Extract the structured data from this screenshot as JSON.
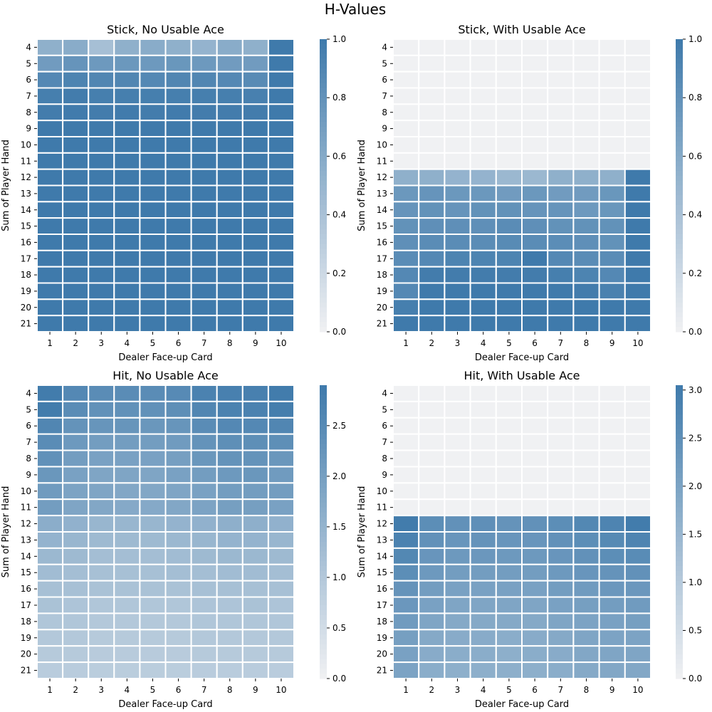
{
  "figure": {
    "title": "H-Values"
  },
  "colors": {
    "high": "#3f7aab",
    "low": "#f0f1f3",
    "grid": "#ffffff"
  },
  "chart_data": [
    {
      "type": "heatmap",
      "title": "Stick, No Usable Ace",
      "xlabel": "Dealer Face-up Card",
      "ylabel": "Sum of Player Hand",
      "x": [
        "1",
        "2",
        "3",
        "4",
        "5",
        "6",
        "7",
        "8",
        "9",
        "10"
      ],
      "y": [
        "4",
        "5",
        "6",
        "7",
        "8",
        "9",
        "10",
        "11",
        "12",
        "13",
        "14",
        "15",
        "16",
        "17",
        "18",
        "19",
        "20",
        "21"
      ],
      "vmin": 0,
      "vmax": 1.0,
      "colorbar_ticks": [
        "0.0",
        "0.2",
        "0.4",
        "0.6",
        "0.8",
        "1.0"
      ],
      "colorbar_tick_values": [
        0,
        0.2,
        0.4,
        0.6,
        0.8,
        1.0
      ],
      "values": [
        [
          0.55,
          0.58,
          0.42,
          0.55,
          0.58,
          0.55,
          0.52,
          0.58,
          0.55,
          1.0
        ],
        [
          0.72,
          0.78,
          0.74,
          0.75,
          0.74,
          0.76,
          0.74,
          0.72,
          0.72,
          1.0
        ],
        [
          0.88,
          0.92,
          0.9,
          0.9,
          0.88,
          0.9,
          0.9,
          0.88,
          0.86,
          1.0
        ],
        [
          0.96,
          0.98,
          0.96,
          0.96,
          0.96,
          0.96,
          0.96,
          0.96,
          0.95,
          1.0
        ],
        [
          0.98,
          0.99,
          0.98,
          0.99,
          0.98,
          0.99,
          0.98,
          0.98,
          0.98,
          1.0
        ],
        [
          1.0,
          1.0,
          1.0,
          1.0,
          1.0,
          1.0,
          1.0,
          1.0,
          1.0,
          1.0
        ],
        [
          1.0,
          1.0,
          1.0,
          1.0,
          1.0,
          1.0,
          1.0,
          1.0,
          1.0,
          1.0
        ],
        [
          1.0,
          1.0,
          1.0,
          1.0,
          1.0,
          1.0,
          1.0,
          1.0,
          1.0,
          1.0
        ],
        [
          1.0,
          1.0,
          1.0,
          1.0,
          1.0,
          1.0,
          1.0,
          1.0,
          1.0,
          1.0
        ],
        [
          1.0,
          1.0,
          1.0,
          1.0,
          1.0,
          1.0,
          1.0,
          1.0,
          1.0,
          1.0
        ],
        [
          1.0,
          1.0,
          1.0,
          1.0,
          1.0,
          1.0,
          1.0,
          1.0,
          1.0,
          1.0
        ],
        [
          1.0,
          1.0,
          1.0,
          1.0,
          1.0,
          1.0,
          1.0,
          1.0,
          1.0,
          1.0
        ],
        [
          1.0,
          1.0,
          1.0,
          1.0,
          1.0,
          1.0,
          1.0,
          1.0,
          1.0,
          1.0
        ],
        [
          1.0,
          1.0,
          1.0,
          1.0,
          1.0,
          1.0,
          1.0,
          1.0,
          1.0,
          1.0
        ],
        [
          1.0,
          1.0,
          1.0,
          1.0,
          1.0,
          1.0,
          1.0,
          1.0,
          1.0,
          1.0
        ],
        [
          1.0,
          1.0,
          1.0,
          1.0,
          1.0,
          1.0,
          1.0,
          1.0,
          1.0,
          1.0
        ],
        [
          1.0,
          1.0,
          1.0,
          1.0,
          1.0,
          1.0,
          1.0,
          1.0,
          1.0,
          1.0
        ],
        [
          1.0,
          1.0,
          1.0,
          1.0,
          1.0,
          1.0,
          1.0,
          1.0,
          1.0,
          1.0
        ]
      ]
    },
    {
      "type": "heatmap",
      "title": "Stick, With Usable Ace",
      "xlabel": "Dealer Face-up Card",
      "ylabel": "Sum of Player Hand",
      "x": [
        "1",
        "2",
        "3",
        "4",
        "5",
        "6",
        "7",
        "8",
        "9",
        "10"
      ],
      "y": [
        "4",
        "5",
        "6",
        "7",
        "8",
        "9",
        "10",
        "11",
        "12",
        "13",
        "14",
        "15",
        "16",
        "17",
        "18",
        "19",
        "20",
        "21"
      ],
      "vmin": 0,
      "vmax": 1.0,
      "colorbar_ticks": [
        "0.0",
        "0.2",
        "0.4",
        "0.6",
        "0.8",
        "1.0"
      ],
      "colorbar_tick_values": [
        0,
        0.2,
        0.4,
        0.6,
        0.8,
        1.0
      ],
      "values": [
        [
          0,
          0,
          0,
          0,
          0,
          0,
          0,
          0,
          0,
          0
        ],
        [
          0,
          0,
          0,
          0,
          0,
          0,
          0,
          0,
          0,
          0
        ],
        [
          0,
          0,
          0,
          0,
          0,
          0,
          0,
          0,
          0,
          0
        ],
        [
          0,
          0,
          0,
          0,
          0,
          0,
          0,
          0,
          0,
          0
        ],
        [
          0,
          0,
          0,
          0,
          0,
          0,
          0,
          0,
          0,
          0
        ],
        [
          0,
          0,
          0,
          0,
          0,
          0,
          0,
          0,
          0,
          0
        ],
        [
          0,
          0,
          0,
          0,
          0,
          0,
          0,
          0,
          0,
          0
        ],
        [
          0,
          0,
          0,
          0,
          0,
          0,
          0,
          0,
          0,
          0
        ],
        [
          0.55,
          0.55,
          0.52,
          0.52,
          0.48,
          0.48,
          0.55,
          0.55,
          0.55,
          1.0
        ],
        [
          0.75,
          0.78,
          0.75,
          0.75,
          0.72,
          0.75,
          0.72,
          0.72,
          0.76,
          1.0
        ],
        [
          0.78,
          0.8,
          0.78,
          0.8,
          0.8,
          0.78,
          0.78,
          0.74,
          0.76,
          1.0
        ],
        [
          0.8,
          0.82,
          0.82,
          0.82,
          0.85,
          0.82,
          0.8,
          0.8,
          0.8,
          1.0
        ],
        [
          0.82,
          0.85,
          0.85,
          0.85,
          0.86,
          0.85,
          0.84,
          0.82,
          0.8,
          1.0
        ],
        [
          0.85,
          0.88,
          0.92,
          0.92,
          0.92,
          1.0,
          0.88,
          0.85,
          0.85,
          1.0
        ],
        [
          0.88,
          0.98,
          0.98,
          0.98,
          0.98,
          0.98,
          0.96,
          0.92,
          0.88,
          1.0
        ],
        [
          0.88,
          1.0,
          1.0,
          1.0,
          1.0,
          1.0,
          1.0,
          0.98,
          0.94,
          1.0
        ],
        [
          0.96,
          1.0,
          1.0,
          1.0,
          1.0,
          1.0,
          1.0,
          1.0,
          1.0,
          1.0
        ],
        [
          1.0,
          1.0,
          1.0,
          1.0,
          1.0,
          1.0,
          1.0,
          1.0,
          1.0,
          1.0
        ]
      ]
    },
    {
      "type": "heatmap",
      "title": "Hit, No Usable Ace",
      "xlabel": "Dealer Face-up Card",
      "ylabel": "Sum of Player Hand",
      "x": [
        "1",
        "2",
        "3",
        "4",
        "5",
        "6",
        "7",
        "8",
        "9",
        "10"
      ],
      "y": [
        "4",
        "5",
        "6",
        "7",
        "8",
        "9",
        "10",
        "11",
        "12",
        "13",
        "14",
        "15",
        "16",
        "17",
        "18",
        "19",
        "20",
        "21"
      ],
      "vmin": 0,
      "vmax": 2.9,
      "colorbar_ticks": [
        "0.0",
        "0.5",
        "1.0",
        "1.5",
        "2.0",
        "2.5"
      ],
      "colorbar_tick_values": [
        0,
        0.5,
        1.0,
        1.5,
        2.0,
        2.5
      ],
      "values": [
        [
          2.85,
          2.55,
          2.45,
          2.45,
          2.45,
          2.5,
          2.7,
          2.75,
          2.75,
          2.85
        ],
        [
          2.85,
          2.45,
          2.35,
          2.35,
          2.35,
          2.4,
          2.6,
          2.7,
          2.7,
          2.8
        ],
        [
          2.6,
          2.3,
          2.25,
          2.25,
          2.2,
          2.25,
          2.45,
          2.55,
          2.55,
          2.6
        ],
        [
          2.45,
          2.15,
          2.05,
          2.05,
          2.05,
          2.1,
          2.3,
          2.4,
          2.4,
          2.4
        ],
        [
          2.35,
          2.05,
          1.95,
          1.95,
          1.95,
          2.0,
          2.2,
          2.3,
          2.3,
          2.2
        ],
        [
          2.2,
          1.95,
          1.85,
          1.85,
          1.85,
          1.95,
          2.05,
          2.15,
          2.2,
          2.1
        ],
        [
          2.1,
          1.9,
          1.85,
          1.8,
          1.8,
          1.85,
          1.95,
          2.05,
          2.05,
          2.05
        ],
        [
          2.05,
          1.85,
          1.8,
          1.75,
          1.75,
          1.8,
          1.9,
          2.0,
          2.0,
          1.95
        ],
        [
          1.65,
          1.55,
          1.45,
          1.45,
          1.45,
          1.5,
          1.55,
          1.6,
          1.6,
          1.55
        ],
        [
          1.5,
          1.45,
          1.35,
          1.35,
          1.35,
          1.4,
          1.45,
          1.5,
          1.5,
          1.45
        ],
        [
          1.4,
          1.35,
          1.25,
          1.25,
          1.25,
          1.3,
          1.35,
          1.4,
          1.4,
          1.35
        ],
        [
          1.3,
          1.25,
          1.2,
          1.2,
          1.2,
          1.25,
          1.25,
          1.3,
          1.3,
          1.25
        ],
        [
          1.2,
          1.2,
          1.15,
          1.15,
          1.15,
          1.15,
          1.2,
          1.2,
          1.2,
          1.2
        ],
        [
          1.15,
          1.1,
          1.05,
          1.05,
          1.05,
          1.05,
          1.1,
          1.1,
          1.15,
          1.1
        ],
        [
          1.05,
          1.05,
          1.0,
          1.0,
          1.0,
          1.0,
          1.05,
          1.05,
          1.05,
          1.05
        ],
        [
          1.0,
          1.0,
          0.95,
          0.95,
          0.95,
          0.95,
          1.0,
          1.0,
          1.0,
          1.0
        ],
        [
          0.95,
          0.95,
          0.92,
          0.92,
          0.92,
          0.92,
          0.95,
          0.95,
          0.95,
          0.95
        ],
        [
          0.9,
          0.9,
          0.88,
          0.88,
          0.88,
          0.88,
          0.9,
          0.9,
          0.9,
          0.9
        ]
      ]
    },
    {
      "type": "heatmap",
      "title": "Hit, With Usable Ace",
      "xlabel": "Dealer Face-up Card",
      "ylabel": "Sum of Player Hand",
      "x": [
        "1",
        "2",
        "3",
        "4",
        "5",
        "6",
        "7",
        "8",
        "9",
        "10"
      ],
      "y": [
        "4",
        "5",
        "6",
        "7",
        "8",
        "9",
        "10",
        "11",
        "12",
        "13",
        "14",
        "15",
        "16",
        "17",
        "18",
        "19",
        "20",
        "21"
      ],
      "vmin": 0,
      "vmax": 3.05,
      "colorbar_ticks": [
        "0.0",
        "0.5",
        "1.0",
        "1.5",
        "2.0",
        "2.5",
        "3.0"
      ],
      "colorbar_tick_values": [
        0,
        0.5,
        1.0,
        1.5,
        2.0,
        2.5,
        3.0
      ],
      "values": [
        [
          0,
          0,
          0,
          0,
          0,
          0,
          0,
          0,
          0,
          0
        ],
        [
          0,
          0,
          0,
          0,
          0,
          0,
          0,
          0,
          0,
          0
        ],
        [
          0,
          0,
          0,
          0,
          0,
          0,
          0,
          0,
          0,
          0
        ],
        [
          0,
          0,
          0,
          0,
          0,
          0,
          0,
          0,
          0,
          0
        ],
        [
          0,
          0,
          0,
          0,
          0,
          0,
          0,
          0,
          0,
          0
        ],
        [
          0,
          0,
          0,
          0,
          0,
          0,
          0,
          0,
          0,
          0
        ],
        [
          0,
          0,
          0,
          0,
          0,
          0,
          0,
          0,
          0,
          0
        ],
        [
          0,
          0,
          0,
          0,
          0,
          0,
          0,
          0,
          0,
          0
        ],
        [
          3.0,
          2.55,
          2.45,
          2.5,
          2.4,
          2.45,
          2.55,
          2.7,
          2.8,
          3.0
        ],
        [
          2.85,
          2.45,
          2.35,
          2.4,
          2.35,
          2.35,
          2.45,
          2.55,
          2.65,
          2.8
        ],
        [
          2.7,
          2.35,
          2.25,
          2.3,
          2.25,
          2.25,
          2.35,
          2.45,
          2.55,
          2.6
        ],
        [
          2.55,
          2.25,
          2.15,
          2.15,
          2.15,
          2.15,
          2.25,
          2.35,
          2.4,
          2.45
        ],
        [
          2.4,
          2.15,
          2.05,
          2.05,
          2.05,
          2.05,
          2.15,
          2.2,
          2.3,
          2.3
        ],
        [
          2.3,
          2.05,
          1.95,
          1.95,
          1.95,
          1.95,
          2.05,
          2.1,
          2.15,
          2.2
        ],
        [
          2.2,
          1.95,
          1.85,
          1.85,
          1.85,
          1.85,
          1.95,
          2.0,
          2.05,
          2.1
        ],
        [
          2.1,
          1.85,
          1.8,
          1.8,
          1.75,
          1.8,
          1.85,
          1.95,
          2.0,
          2.0
        ],
        [
          2.05,
          1.8,
          1.75,
          1.75,
          1.7,
          1.75,
          1.8,
          1.9,
          1.95,
          1.95
        ],
        [
          2.0,
          1.75,
          1.7,
          1.7,
          1.7,
          1.7,
          1.75,
          1.85,
          1.9,
          1.9
        ]
      ]
    }
  ]
}
